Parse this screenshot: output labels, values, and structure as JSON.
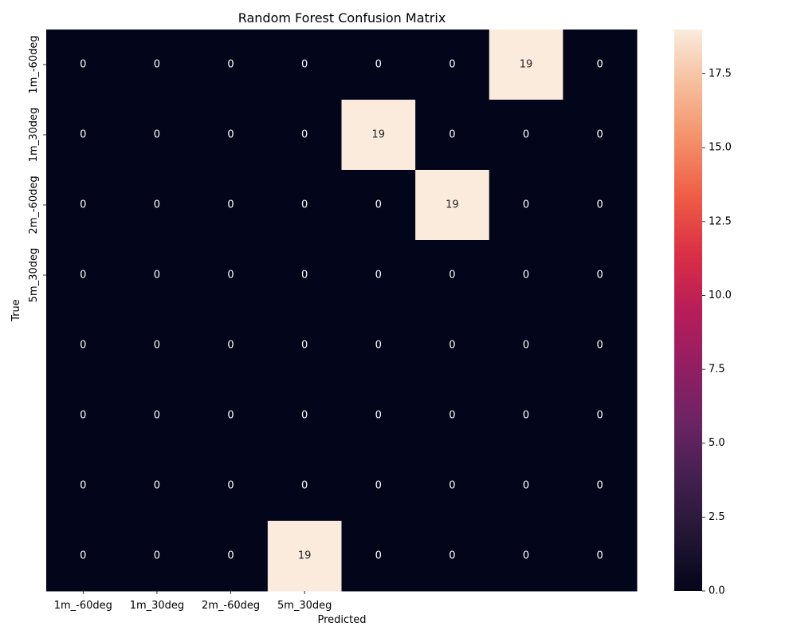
{
  "chart_data": {
    "type": "heatmap",
    "title": "Random Forest Confusion Matrix",
    "xlabel": "Predicted",
    "ylabel": "True",
    "x_tick_labels": [
      "1m_-60deg",
      "1m_30deg",
      "2m_-60deg",
      "5m_30deg"
    ],
    "y_tick_labels": [
      "1m_-60deg",
      "1m_30deg",
      "2m_-60deg",
      "5m_30deg"
    ],
    "n_rows": 8,
    "n_cols": 8,
    "matrix": [
      [
        0,
        0,
        0,
        0,
        0,
        0,
        19,
        0
      ],
      [
        0,
        0,
        0,
        0,
        19,
        0,
        0,
        0
      ],
      [
        0,
        0,
        0,
        0,
        0,
        19,
        0,
        0
      ],
      [
        0,
        0,
        0,
        0,
        0,
        0,
        0,
        0
      ],
      [
        0,
        0,
        0,
        0,
        0,
        0,
        0,
        0
      ],
      [
        0,
        0,
        0,
        0,
        0,
        0,
        0,
        0
      ],
      [
        0,
        0,
        0,
        0,
        0,
        0,
        0,
        0
      ],
      [
        0,
        0,
        0,
        19,
        0,
        0,
        0,
        0
      ]
    ],
    "colorbar": {
      "min": 0,
      "max": 19,
      "ticks": [
        0.0,
        2.5,
        5.0,
        7.5,
        10.0,
        12.5,
        15.0,
        17.5
      ],
      "tick_labels": [
        "0.0",
        "2.5",
        "5.0",
        "7.5",
        "10.0",
        "12.5",
        "15.0",
        "17.5"
      ],
      "colormap": "rocket"
    },
    "colors": {
      "low": "#03051a",
      "high": "#faebdd",
      "text_on_dark": "#ffffff",
      "text_on_light": "#262626"
    }
  }
}
